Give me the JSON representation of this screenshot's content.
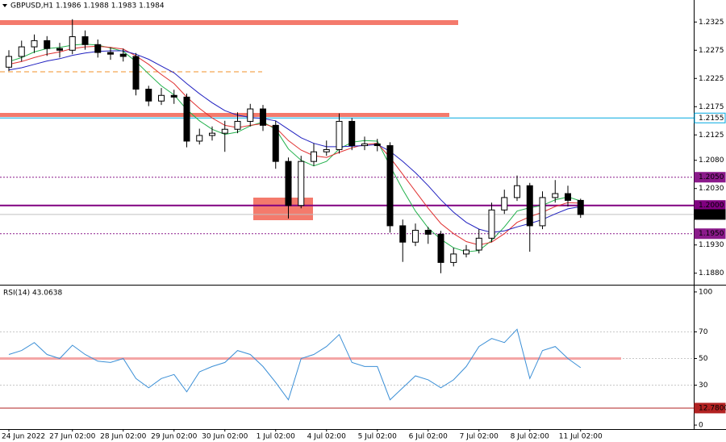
{
  "chart_data": [
    {
      "type": "candlestick",
      "title": "GBPUSD,H1  1.1986 1.1988 1.1983 1.1984",
      "categories": [
        "24 Jun 2022",
        null,
        null,
        null,
        null,
        "27 Jun 02:00",
        null,
        null,
        null,
        "28 Jun 02:00",
        null,
        null,
        null,
        "29 Jun 02:00",
        null,
        null,
        null,
        "30 Jun 02:00",
        null,
        null,
        null,
        "1 Jul 02:00",
        null,
        null,
        null,
        "4 Jul 02:00",
        null,
        null,
        null,
        "5 Jul 02:00",
        null,
        null,
        null,
        "6 Jul 02:00",
        null,
        null,
        null,
        "7 Jul 02:00",
        null,
        null,
        null,
        "8 Jul 02:00",
        null,
        null,
        null,
        "11 Jul 02:00"
      ],
      "open": [
        1.2245,
        1.2264,
        1.2281,
        1.2292,
        1.2278,
        1.2275,
        1.2299,
        1.2285,
        1.2271,
        1.2268,
        1.2264,
        1.2206,
        1.2185,
        1.2195,
        1.2192,
        1.2114,
        1.2124,
        1.2128,
        1.2135,
        1.2149,
        1.2171,
        1.2142,
        1.2078,
        1.2,
        1.2078,
        1.2095,
        1.2099,
        1.2149,
        1.2106,
        1.2109,
        1.2106,
        1.1964,
        1.1935,
        1.1956,
        1.1949,
        1.1899,
        1.1914,
        1.1921,
        1.1942,
        1.1992,
        1.2014,
        1.2035,
        1.1964,
        1.2014,
        1.2021,
        1.2009
      ],
      "high": [
        1.2275,
        1.2292,
        1.2303,
        1.23,
        1.2288,
        1.233,
        1.231,
        1.2294,
        1.228,
        1.2278,
        1.227,
        1.2212,
        1.2208,
        1.2205,
        1.2198,
        1.2136,
        1.214,
        1.215,
        1.2165,
        1.218,
        1.2178,
        1.215,
        1.2085,
        1.2088,
        1.211,
        1.2115,
        1.2163,
        1.2155,
        1.2122,
        1.2118,
        1.2112,
        1.1975,
        1.1968,
        1.1962,
        1.1955,
        1.1925,
        1.193,
        1.1958,
        1.2005,
        1.2028,
        1.2053,
        1.204,
        1.2025,
        1.2045,
        1.2035,
        1.2012
      ],
      "low": [
        1.2238,
        1.2255,
        1.227,
        1.2265,
        1.2262,
        1.2268,
        1.2276,
        1.2262,
        1.2258,
        1.2255,
        1.2195,
        1.2176,
        1.2178,
        1.218,
        1.2103,
        1.2108,
        1.2115,
        1.2095,
        1.2128,
        1.214,
        1.2132,
        1.2065,
        1.1977,
        1.1995,
        1.207,
        1.2088,
        1.2092,
        1.2098,
        1.2098,
        1.2096,
        1.1952,
        1.19,
        1.1928,
        1.1932,
        1.188,
        1.1892,
        1.1908,
        1.1915,
        1.1935,
        1.1985,
        1.2008,
        1.1918,
        1.1958,
        1.2005,
        1.1998,
        1.1978
      ],
      "close": [
        1.2264,
        1.2281,
        1.2292,
        1.2278,
        1.2275,
        1.2299,
        1.2285,
        1.2271,
        1.2268,
        1.2264,
        1.2206,
        1.2185,
        1.2195,
        1.2192,
        1.2114,
        1.2124,
        1.2128,
        1.2135,
        1.2149,
        1.2171,
        1.2142,
        1.2078,
        1.2,
        1.2078,
        1.2095,
        1.2099,
        1.2149,
        1.2106,
        1.2109,
        1.2106,
        1.1964,
        1.1935,
        1.1956,
        1.1949,
        1.1899,
        1.1914,
        1.1921,
        1.1942,
        1.1992,
        1.2014,
        1.2035,
        1.1964,
        1.2014,
        1.2021,
        1.2009,
        1.1984
      ],
      "series": [
        {
          "color": "#22b14c",
          "values": [
            1.2255,
            1.2262,
            1.2272,
            1.2278,
            1.228,
            1.2284,
            1.2286,
            1.2284,
            1.2279,
            1.2273,
            1.2255,
            1.2233,
            1.2212,
            1.2196,
            1.217,
            1.215,
            1.2135,
            1.2126,
            1.213,
            1.2141,
            1.2148,
            1.2135,
            1.21,
            1.208,
            1.207,
            1.2078,
            1.21,
            1.2112,
            1.2115,
            1.2114,
            1.207,
            1.2028,
            1.199,
            1.196,
            1.194,
            1.1925,
            1.1918,
            1.192,
            1.1938,
            1.1962,
            1.199,
            1.1996,
            1.2,
            1.201,
            1.2015,
            1.2008
          ]
        },
        {
          "color": "#e03030",
          "values": [
            1.225,
            1.2255,
            1.2262,
            1.2268,
            1.2272,
            1.2278,
            1.2281,
            1.2282,
            1.228,
            1.2277,
            1.2265,
            1.225,
            1.2232,
            1.2216,
            1.2192,
            1.2172,
            1.2155,
            1.2142,
            1.2138,
            1.2142,
            1.2145,
            1.2138,
            1.2115,
            1.2098,
            1.2088,
            1.2085,
            1.2094,
            1.2102,
            1.2108,
            1.211,
            1.2085,
            1.2055,
            1.2025,
            1.1995,
            1.1968,
            1.195,
            1.1936,
            1.193,
            1.1935,
            1.195,
            1.197,
            1.198,
            1.1988,
            1.1998,
            1.2005,
            1.2004
          ]
        },
        {
          "color": "#2020c0",
          "values": [
            1.224,
            1.2244,
            1.225,
            1.2256,
            1.226,
            1.2266,
            1.227,
            1.2273,
            1.2274,
            1.2274,
            1.2268,
            1.2259,
            1.2247,
            1.2235,
            1.2216,
            1.2198,
            1.2182,
            1.2168,
            1.216,
            1.2156,
            1.2154,
            1.215,
            1.2135,
            1.212,
            1.211,
            1.2104,
            1.2104,
            1.2105,
            1.2106,
            1.2108,
            1.2096,
            1.2078,
            1.2058,
            1.2035,
            1.201,
            1.1988,
            1.197,
            1.1958,
            1.1952,
            1.1955,
            1.1962,
            1.1968,
            1.1975,
            1.1985,
            1.1994,
            1.1998
          ]
        }
      ],
      "ylim": [
        1.1861,
        1.2364
      ],
      "yticks": [
        1.2325,
        1.2275,
        1.2225,
        1.2175,
        1.2125,
        {
          "value": 1.208,
          "label": "1.2080"
        },
        {
          "value": 1.203,
          "label": "1.2030"
        },
        {
          "value": 1.193,
          "label": "1.1930"
        },
        {
          "value": 1.188,
          "label": "1.1880"
        }
      ],
      "levels": [
        {
          "value": 1.2155,
          "label": "1.2155",
          "color": "#00a8e0",
          "style": "solid"
        },
        {
          "value": 1.205,
          "label": "1.2050",
          "color": "#8b1a8b",
          "style": "dotted"
        },
        {
          "value": 1.2,
          "label": "1.2000",
          "color": "#800080",
          "style": "thick"
        },
        {
          "value": 1.1984,
          "label": "1.1984",
          "color": "#000000",
          "style": "current"
        },
        {
          "value": 1.195,
          "label": "1.1950",
          "color": "#8b1a8b",
          "style": "dotted"
        }
      ]
    },
    {
      "type": "line",
      "title": "RSI(14) 43.0638",
      "values": [
        53,
        56,
        62,
        53,
        50,
        60,
        53,
        48,
        47,
        50,
        35,
        28,
        35,
        38,
        25,
        40,
        44,
        47,
        56,
        53,
        44,
        32,
        19,
        50,
        53,
        59,
        68,
        47,
        44,
        44,
        19,
        28,
        37,
        34,
        28,
        34,
        44,
        59,
        65,
        62,
        72,
        35,
        56,
        59,
        50,
        43.0638
      ],
      "color": "#3b8fd6",
      "ylim": [
        -3,
        104.2
      ],
      "yticks": [
        0,
        30,
        50,
        70,
        100
      ],
      "levels": [
        {
          "value": 50,
          "color": "#f4a6a6",
          "style": "band"
        },
        {
          "value": 12.78,
          "label": "12.7800",
          "color": "#b22222",
          "style": "solid"
        }
      ]
    }
  ]
}
